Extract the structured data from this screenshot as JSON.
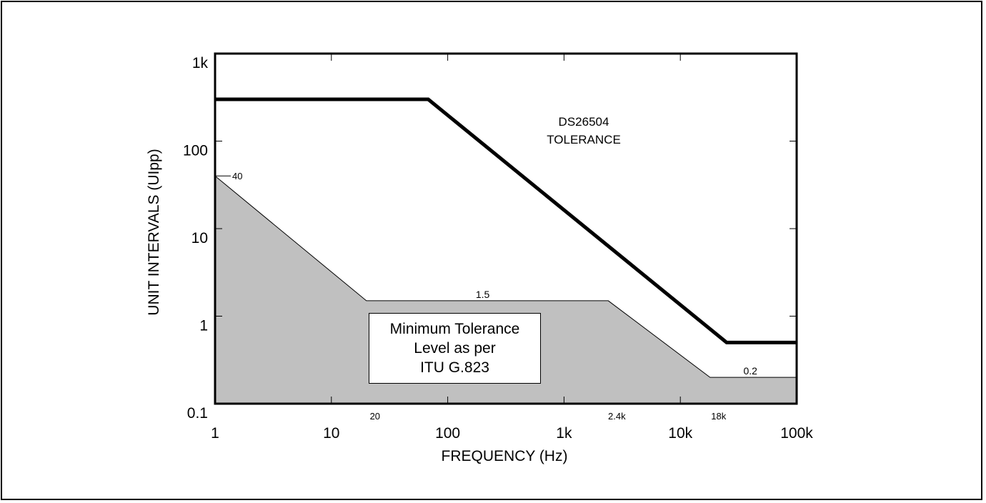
{
  "chart_data": {
    "type": "line",
    "xlabel": "FREQUENCY (Hz)",
    "ylabel": "UNIT INTERVALS (UIpp)",
    "x_scale": "log",
    "y_scale": "log",
    "xlim": [
      1,
      100000
    ],
    "ylim": [
      0.1,
      1000
    ],
    "grid": false,
    "x_ticks": [
      {
        "value": 1,
        "label": "1"
      },
      {
        "value": 10,
        "label": "10"
      },
      {
        "value": 100,
        "label": "100"
      },
      {
        "value": 1000,
        "label": "1k"
      },
      {
        "value": 10000,
        "label": "10k"
      },
      {
        "value": 100000,
        "label": "100k"
      }
    ],
    "y_ticks": [
      {
        "value": 0.1,
        "label": "0.1"
      },
      {
        "value": 1,
        "label": "1"
      },
      {
        "value": 10,
        "label": "10"
      },
      {
        "value": 100,
        "label": "100"
      },
      {
        "value": 1000,
        "label": "1k"
      }
    ],
    "series": [
      {
        "name": "DS26504 TOLERANCE",
        "color": "#000000",
        "style": "thick-line",
        "x": [
          1,
          68,
          25000,
          100000
        ],
        "y": [
          300,
          300,
          0.5,
          0.5
        ]
      },
      {
        "name": "Minimum Tolerance Level as per ITU G.823",
        "color": "#c0c0c0",
        "style": "filled-area",
        "x": [
          1,
          20,
          2400,
          18000,
          100000
        ],
        "y": [
          40,
          1.5,
          1.5,
          0.2,
          0.2
        ]
      }
    ],
    "annotations": [
      {
        "text": "40",
        "x": 1,
        "y": 40
      },
      {
        "text": "1.5",
        "x": 200,
        "y": 1.5
      },
      {
        "text": "0.2",
        "x": 40000,
        "y": 0.2
      },
      {
        "text": "20",
        "x": 20,
        "y": 0.1
      },
      {
        "text": "2.4k",
        "x": 2400,
        "y": 0.1
      },
      {
        "text": "18k",
        "x": 18000,
        "y": 0.1
      }
    ],
    "tolerance_label": [
      "DS26504",
      "TOLERANCE"
    ],
    "mask_label": [
      "Minimum Tolerance",
      "Level as per",
      "ITU G.823"
    ]
  }
}
